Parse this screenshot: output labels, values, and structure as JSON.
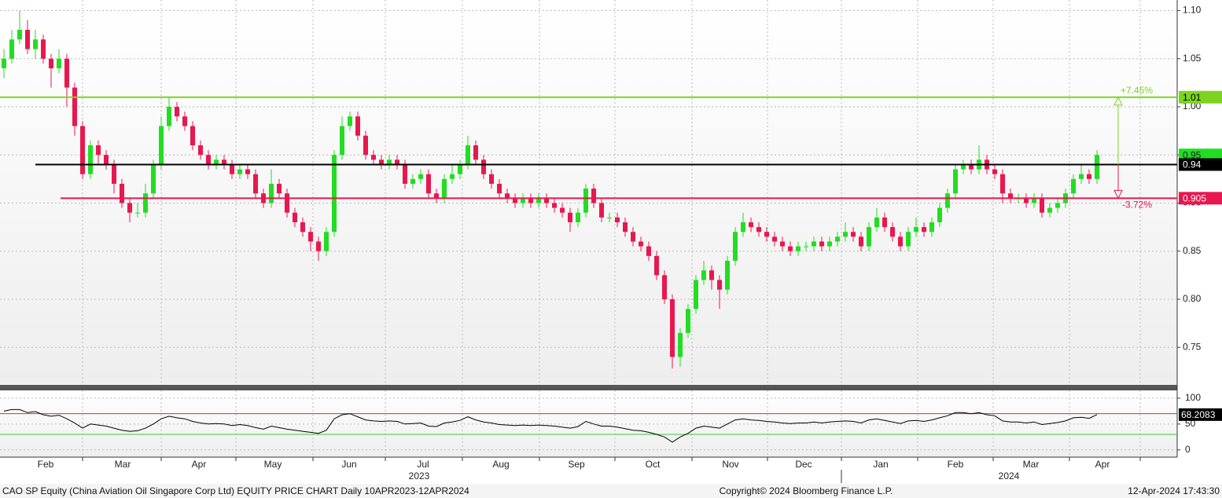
{
  "chart_data": [
    {
      "type": "candlestick",
      "xlim": [
        -0.5,
        149.2
      ],
      "ylim": [
        0.711,
        1.111
      ],
      "yticks": [
        {
          "value": 1.1,
          "label": "1.10"
        },
        {
          "value": 1.05,
          "label": "1.05"
        },
        {
          "value": 1.0,
          "label": "1.00"
        },
        {
          "value": 0.95,
          "label": "0.95"
        },
        {
          "value": 0.9,
          "label": "0.90"
        },
        {
          "value": 0.85,
          "label": "0.85"
        },
        {
          "value": 0.8,
          "label": "0.80"
        },
        {
          "value": 0.75,
          "label": "0.75"
        }
      ],
      "xticks": [
        {
          "value": 5.3,
          "label": "Feb"
        },
        {
          "value": 15.1,
          "label": "Mar"
        },
        {
          "value": 24.8,
          "label": "Apr"
        },
        {
          "value": 34.2,
          "label": "May"
        },
        {
          "value": 43.9,
          "label": "Jun"
        },
        {
          "value": 53.3,
          "label": "Jul"
        },
        {
          "value": 63.2,
          "label": "Aug"
        },
        {
          "value": 72.8,
          "label": "Sep"
        },
        {
          "value": 82.5,
          "label": "Oct"
        },
        {
          "value": 92.4,
          "label": "Nov"
        },
        {
          "value": 101.7,
          "label": "Dec"
        },
        {
          "value": 111.5,
          "label": "Jan"
        },
        {
          "value": 121,
          "label": "Feb"
        },
        {
          "value": 130.6,
          "label": "Mar"
        },
        {
          "value": 139.7,
          "label": "Apr"
        }
      ],
      "xgrid": [
        10,
        20,
        29.5,
        39.3,
        48.5,
        58.3,
        68.1,
        77.7,
        87.5,
        97.1,
        106.5,
        116.2,
        125.8,
        135.5,
        144.5
      ],
      "years": [
        {
          "value": 52.8,
          "label": "2023"
        },
        {
          "value": 127.8,
          "label": "2024"
        }
      ],
      "grid": true,
      "up_color": "#22dd22",
      "down_color": "#e8174f",
      "open": [
        1.04,
        1.05,
        1.07,
        1.08,
        1.06,
        1.07,
        1.05,
        1.04,
        1.05,
        1.02,
        0.98,
        0.93,
        0.96,
        0.95,
        0.94,
        0.92,
        0.9,
        0.89,
        0.89,
        0.91,
        0.94,
        0.98,
        1.0,
        0.99,
        0.98,
        0.96,
        0.95,
        0.94,
        0.945,
        0.94,
        0.93,
        0.935,
        0.93,
        0.91,
        0.9,
        0.92,
        0.91,
        0.89,
        0.88,
        0.87,
        0.86,
        0.85,
        0.87,
        0.95,
        0.98,
        0.99,
        0.97,
        0.95,
        0.945,
        0.94,
        0.945,
        0.94,
        0.92,
        0.925,
        0.93,
        0.91,
        0.905,
        0.925,
        0.93,
        0.94,
        0.96,
        0.945,
        0.93,
        0.92,
        0.91,
        0.905,
        0.9,
        0.905,
        0.9,
        0.905,
        0.9,
        0.895,
        0.89,
        0.88,
        0.89,
        0.915,
        0.9,
        0.885,
        0.885,
        0.88,
        0.87,
        0.86,
        0.855,
        0.845,
        0.825,
        0.8,
        0.74,
        0.765,
        0.79,
        0.82,
        0.83,
        0.82,
        0.81,
        0.84,
        0.87,
        0.88,
        0.875,
        0.87,
        0.865,
        0.86,
        0.855,
        0.85,
        0.855,
        0.855,
        0.86,
        0.855,
        0.86,
        0.865,
        0.87,
        0.865,
        0.855,
        0.875,
        0.885,
        0.875,
        0.865,
        0.855,
        0.87,
        0.875,
        0.87,
        0.88,
        0.895,
        0.91,
        0.935,
        0.94,
        0.935,
        0.945,
        0.935,
        0.93,
        0.91,
        0.905,
        0.905,
        0.9,
        0.905,
        0.89,
        0.895,
        0.9,
        0.91,
        0.925,
        0.93,
        0.925
      ],
      "high": [
        1.06,
        1.08,
        1.1,
        1.09,
        1.08,
        1.075,
        1.055,
        1.06,
        1.055,
        1.025,
        0.985,
        0.965,
        0.965,
        0.955,
        0.945,
        0.925,
        0.905,
        0.9,
        0.92,
        0.945,
        0.99,
        1.01,
        1.005,
        0.995,
        0.985,
        0.965,
        0.955,
        0.95,
        0.95,
        0.945,
        0.94,
        0.94,
        0.935,
        0.915,
        0.935,
        0.925,
        0.915,
        0.895,
        0.885,
        0.875,
        0.865,
        0.875,
        0.955,
        0.99,
        0.995,
        0.995,
        0.975,
        0.955,
        0.95,
        0.95,
        0.95,
        0.945,
        0.93,
        0.935,
        0.935,
        0.915,
        0.93,
        0.94,
        0.945,
        0.97,
        0.965,
        0.95,
        0.935,
        0.925,
        0.915,
        0.91,
        0.91,
        0.91,
        0.91,
        0.91,
        0.905,
        0.9,
        0.895,
        0.895,
        0.92,
        0.92,
        0.905,
        0.89,
        0.89,
        0.885,
        0.875,
        0.865,
        0.86,
        0.85,
        0.83,
        0.805,
        0.77,
        0.795,
        0.825,
        0.84,
        0.835,
        0.825,
        0.845,
        0.875,
        0.89,
        0.885,
        0.88,
        0.875,
        0.87,
        0.865,
        0.86,
        0.86,
        0.86,
        0.865,
        0.865,
        0.865,
        0.87,
        0.88,
        0.875,
        0.87,
        0.88,
        0.895,
        0.89,
        0.88,
        0.87,
        0.875,
        0.885,
        0.88,
        0.885,
        0.9,
        0.915,
        0.94,
        0.945,
        0.945,
        0.96,
        0.95,
        0.94,
        0.935,
        0.915,
        0.91,
        0.91,
        0.91,
        0.91,
        0.9,
        0.905,
        0.915,
        0.93,
        0.94,
        0.935,
        0.955
      ],
      "low": [
        1.03,
        1.045,
        1.065,
        1.055,
        1.05,
        1.045,
        1.02,
        1.035,
        1.0,
        0.97,
        0.925,
        0.925,
        0.94,
        0.935,
        0.91,
        0.895,
        0.88,
        0.885,
        0.885,
        0.905,
        0.935,
        0.975,
        0.985,
        0.975,
        0.955,
        0.945,
        0.935,
        0.935,
        0.935,
        0.925,
        0.925,
        0.925,
        0.905,
        0.895,
        0.895,
        0.905,
        0.885,
        0.875,
        0.865,
        0.85,
        0.84,
        0.845,
        0.865,
        0.945,
        0.975,
        0.965,
        0.945,
        0.94,
        0.935,
        0.935,
        0.935,
        0.915,
        0.915,
        0.92,
        0.905,
        0.9,
        0.9,
        0.92,
        0.925,
        0.935,
        0.94,
        0.925,
        0.915,
        0.905,
        0.9,
        0.895,
        0.895,
        0.895,
        0.895,
        0.895,
        0.89,
        0.885,
        0.87,
        0.875,
        0.885,
        0.895,
        0.88,
        0.88,
        0.875,
        0.865,
        0.855,
        0.85,
        0.84,
        0.82,
        0.795,
        0.728,
        0.73,
        0.76,
        0.785,
        0.815,
        0.81,
        0.79,
        0.805,
        0.835,
        0.865,
        0.87,
        0.865,
        0.86,
        0.855,
        0.85,
        0.845,
        0.845,
        0.85,
        0.85,
        0.85,
        0.85,
        0.855,
        0.86,
        0.86,
        0.85,
        0.85,
        0.87,
        0.87,
        0.86,
        0.85,
        0.85,
        0.865,
        0.865,
        0.865,
        0.875,
        0.89,
        0.905,
        0.93,
        0.93,
        0.93,
        0.93,
        0.925,
        0.9,
        0.9,
        0.9,
        0.895,
        0.895,
        0.885,
        0.885,
        0.89,
        0.895,
        0.905,
        0.92,
        0.92,
        0.92
      ],
      "close": [
        1.05,
        1.07,
        1.08,
        1.06,
        1.07,
        1.05,
        1.04,
        1.05,
        1.02,
        0.98,
        0.93,
        0.96,
        0.95,
        0.94,
        0.92,
        0.9,
        0.89,
        0.89,
        0.91,
        0.94,
        0.98,
        1.0,
        0.99,
        0.98,
        0.96,
        0.95,
        0.94,
        0.945,
        0.94,
        0.93,
        0.935,
        0.93,
        0.91,
        0.9,
        0.92,
        0.91,
        0.89,
        0.88,
        0.87,
        0.86,
        0.85,
        0.87,
        0.95,
        0.98,
        0.99,
        0.97,
        0.95,
        0.945,
        0.94,
        0.945,
        0.94,
        0.92,
        0.925,
        0.93,
        0.91,
        0.905,
        0.925,
        0.93,
        0.94,
        0.96,
        0.945,
        0.93,
        0.92,
        0.91,
        0.905,
        0.9,
        0.905,
        0.9,
        0.905,
        0.9,
        0.895,
        0.89,
        0.88,
        0.89,
        0.915,
        0.9,
        0.885,
        0.885,
        0.88,
        0.87,
        0.86,
        0.855,
        0.845,
        0.825,
        0.8,
        0.74,
        0.765,
        0.79,
        0.82,
        0.83,
        0.82,
        0.81,
        0.84,
        0.87,
        0.88,
        0.875,
        0.87,
        0.865,
        0.86,
        0.855,
        0.85,
        0.855,
        0.855,
        0.86,
        0.855,
        0.86,
        0.865,
        0.87,
        0.865,
        0.855,
        0.875,
        0.885,
        0.875,
        0.865,
        0.855,
        0.87,
        0.875,
        0.87,
        0.88,
        0.895,
        0.91,
        0.935,
        0.94,
        0.935,
        0.945,
        0.935,
        0.93,
        0.91,
        0.905,
        0.905,
        0.9,
        0.905,
        0.89,
        0.895,
        0.9,
        0.91,
        0.925,
        0.93,
        0.925,
        0.95
      ],
      "levels": [
        {
          "value": 1.01,
          "label": "1.01",
          "color": "#7ed321"
        },
        {
          "value": 0.94,
          "label": "0.94",
          "color": "#000000"
        },
        {
          "value": 0.905,
          "label": "0.905",
          "color": "#e8174f"
        }
      ],
      "last_price": {
        "value": 0.95,
        "label": "0.95",
        "color": "#22dd22"
      },
      "annotations": [
        {
          "text": "+7.45%",
          "color": "#7ed321"
        },
        {
          "text": "-3.72%",
          "color": "#e8174f"
        }
      ]
    },
    {
      "type": "line",
      "ylim": [
        -14,
        115
      ],
      "yticks": [
        100,
        50,
        0
      ],
      "color": "#000000",
      "reference_lines": [
        {
          "value": 70,
          "color": "#d0303f"
        },
        {
          "value": 30,
          "color": "#3cc83c"
        }
      ],
      "last_label": "68.2083",
      "values": [
        75,
        78,
        78,
        72,
        74,
        68,
        65,
        67,
        60,
        52,
        42,
        50,
        48,
        46,
        42,
        38,
        36,
        37,
        42,
        50,
        60,
        65,
        62,
        60,
        55,
        52,
        50,
        51,
        50,
        47,
        49,
        47,
        43,
        40,
        46,
        43,
        40,
        38,
        36,
        34,
        32,
        38,
        60,
        68,
        70,
        64,
        58,
        56,
        55,
        56,
        55,
        50,
        51,
        52,
        46,
        45,
        52,
        54,
        57,
        64,
        58,
        54,
        52,
        49,
        48,
        47,
        48,
        47,
        48,
        47,
        46,
        44,
        42,
        45,
        55,
        50,
        46,
        46,
        44,
        41,
        38,
        37,
        34,
        30,
        25,
        15,
        25,
        32,
        42,
        46,
        44,
        42,
        50,
        58,
        60,
        58,
        57,
        55,
        54,
        52,
        51,
        52,
        52,
        54,
        52,
        54,
        55,
        56,
        55,
        52,
        58,
        60,
        57,
        54,
        51,
        56,
        57,
        55,
        58,
        62,
        66,
        72,
        72,
        70,
        72,
        68,
        66,
        56,
        54,
        54,
        52,
        54,
        49,
        51,
        53,
        56,
        62,
        63,
        61,
        68.2083
      ]
    }
  ],
  "footer": {
    "left": "CAO SP Equity (China Aviation Oil Singapore Corp Ltd) EQUITY PRICE CHART  Daily 10APR2023-12APR2024",
    "center": "Copyright© 2024 Bloomberg Finance L.P.",
    "right": "12-Apr-2024 17:43:30"
  }
}
